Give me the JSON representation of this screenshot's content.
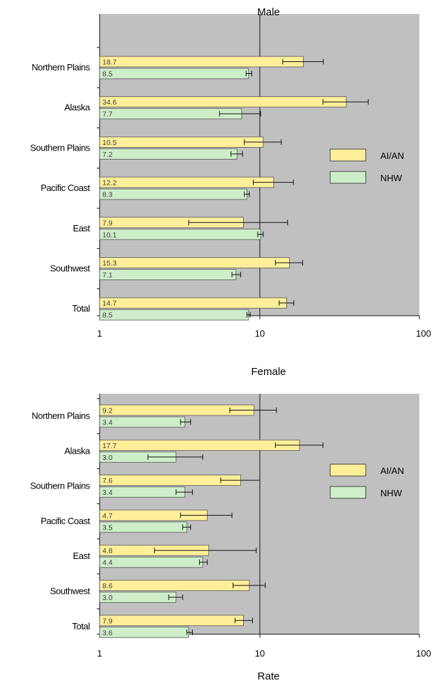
{
  "chart_data": [
    {
      "type": "bar",
      "orientation": "horizontal",
      "title": "Male",
      "x_scale": "log",
      "xlim": [
        1,
        100
      ],
      "x_ticks": [
        "1",
        "10",
        "100"
      ],
      "xlabel": "",
      "categories": [
        "Northern Plains",
        "Alaska",
        "Southern Plains",
        "Pacific Coast",
        "East",
        "Southwest",
        "Total"
      ],
      "series": [
        {
          "name": "AI/AN",
          "color": "#ffef99",
          "values": [
            18.7,
            34.6,
            10.5,
            12.2,
            7.9,
            15.3,
            14.7
          ],
          "labels": [
            "18.7",
            "34.6",
            "10.5",
            "12.2",
            "7.9",
            "15.3",
            "14.7"
          ],
          "ci_low": [
            13.9,
            24.8,
            8.0,
            9.1,
            3.6,
            12.5,
            13.2
          ],
          "ci_high": [
            24.9,
            47.5,
            13.6,
            16.2,
            14.9,
            18.5,
            16.3
          ]
        },
        {
          "name": "NHW",
          "color": "#cdeec9",
          "values": [
            8.5,
            7.7,
            7.2,
            8.3,
            10.1,
            7.1,
            8.5
          ],
          "labels": [
            "8.5",
            "7.7",
            "7.2",
            "8.3",
            "10.1",
            "7.1",
            "8.5"
          ],
          "ci_low": [
            8.2,
            5.6,
            6.6,
            8.0,
            9.7,
            6.7,
            8.3
          ],
          "ci_high": [
            8.9,
            10.1,
            7.8,
            8.6,
            10.5,
            7.6,
            8.7
          ]
        }
      ],
      "legend": "right",
      "background": "#c0c0c0"
    },
    {
      "type": "bar",
      "orientation": "horizontal",
      "title": "Female",
      "x_scale": "log",
      "xlim": [
        1,
        100
      ],
      "x_ticks": [
        "1",
        "10",
        "100"
      ],
      "xlabel": "Rate",
      "categories": [
        "Northern Plains",
        "Alaska",
        "Southern Plains",
        "Pacific Coast",
        "East",
        "Southwest",
        "Total"
      ],
      "series": [
        {
          "name": "AI/AN",
          "color": "#ffef99",
          "values": [
            9.2,
            17.7,
            7.6,
            4.7,
            4.8,
            8.6,
            7.9
          ],
          "labels": [
            "9.2",
            "17.7",
            "7.6",
            "4.7",
            "4.8",
            "8.6",
            "7.9"
          ],
          "ci_low": [
            6.5,
            12.5,
            5.7,
            3.2,
            2.2,
            6.8,
            7.0
          ],
          "ci_high": [
            12.7,
            24.8,
            10.0,
            6.7,
            9.5,
            10.8,
            9.0
          ]
        },
        {
          "name": "NHW",
          "color": "#cdeec9",
          "values": [
            3.4,
            3.0,
            3.4,
            3.5,
            4.4,
            3.0,
            3.6
          ],
          "labels": [
            "3.4",
            "3.0",
            "3.4",
            "3.5",
            "4.4",
            "3.0",
            "3.6"
          ],
          "ci_low": [
            3.2,
            2.0,
            3.0,
            3.3,
            4.2,
            2.7,
            3.5
          ],
          "ci_high": [
            3.7,
            4.4,
            3.8,
            3.7,
            4.7,
            3.3,
            3.8
          ]
        }
      ],
      "legend": "right",
      "background": "#c0c0c0"
    }
  ]
}
